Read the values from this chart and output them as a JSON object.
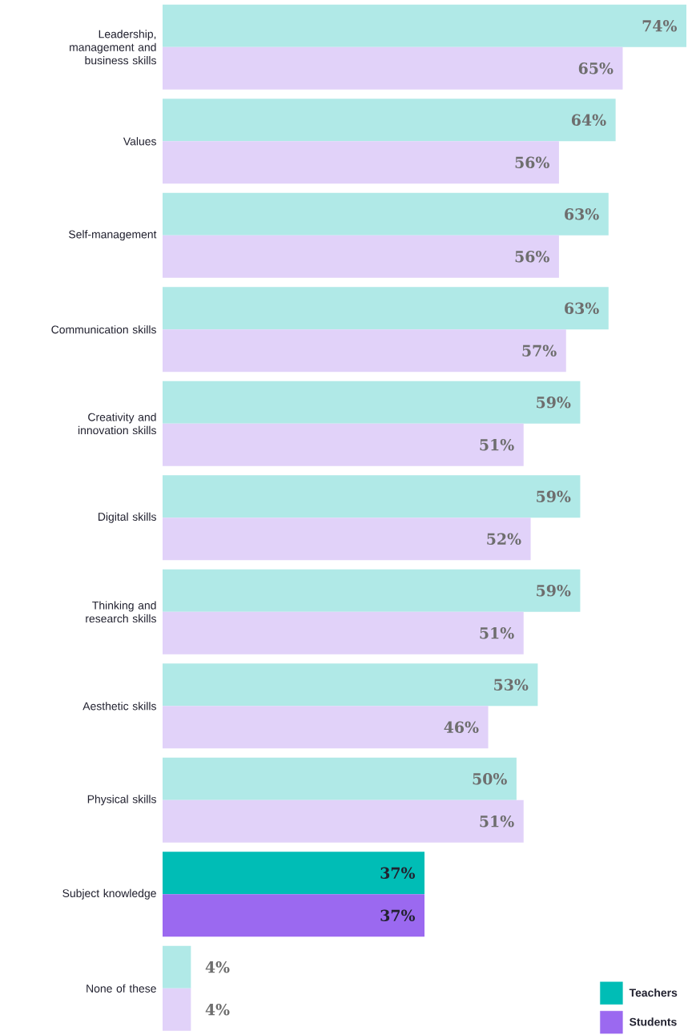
{
  "chart_data": {
    "type": "bar",
    "orientation": "horizontal",
    "legend": "bottom right",
    "categories": [
      "Leadership, management and business skills",
      "Values",
      "Self-management",
      "Communication skills",
      "Creativity and innovation skills",
      "Digital skills",
      "Thinking and research skills",
      "Aesthetic skills",
      "Physical skills",
      "Subject knowledge",
      "None of these"
    ],
    "series": [
      {
        "name": "Teachers",
        "color": "#00bdb6",
        "colors": [
          "#b0e9e7",
          "#b0e9e7",
          "#b0e9e7",
          "#b0e9e7",
          "#b0e9e7",
          "#b0e9e7",
          "#b0e9e7",
          "#b0e9e7",
          "#b0e9e7",
          "#00bdb6",
          "#b0e9e7"
        ],
        "values": [
          74,
          64,
          63,
          63,
          59,
          59,
          59,
          53,
          50,
          37,
          4
        ],
        "value_labels": [
          "74%",
          "64%",
          "63%",
          "63%",
          "59%",
          "59%",
          "59%",
          "53%",
          "50%",
          "37%",
          "4%"
        ]
      },
      {
        "name": "Students",
        "color": "#9b69f0",
        "colors": [
          "#e1d2f9",
          "#e1d2f9",
          "#e1d2f9",
          "#e1d2f9",
          "#e1d2f9",
          "#e1d2f9",
          "#e1d2f9",
          "#e1d2f9",
          "#e1d2f9",
          "#9b69f0",
          "#e1d2f9"
        ],
        "values": [
          65,
          56,
          56,
          57,
          51,
          52,
          51,
          46,
          51,
          37,
          4
        ],
        "value_labels": [
          "65%",
          "56%",
          "56%",
          "57%",
          "51%",
          "52%",
          "51%",
          "46%",
          "51%",
          "37%",
          "4%"
        ]
      }
    ]
  }
}
